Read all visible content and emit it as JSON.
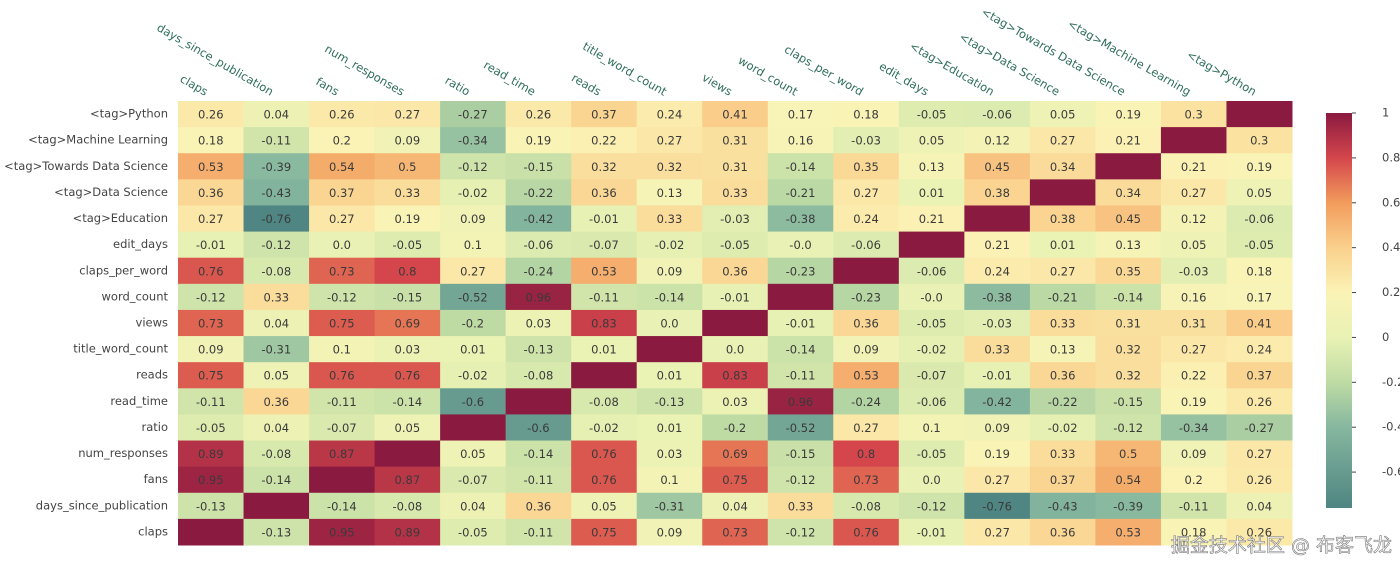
{
  "chart_data": {
    "type": "heatmap",
    "x": [
      "claps",
      "days_since_publication",
      "fans",
      "num_responses",
      "ratio",
      "read_time",
      "reads",
      "title_word_count",
      "views",
      "word_count",
      "claps_per_word",
      "edit_days",
      "<tag>Education",
      "<tag>Data Science",
      "<tag>Towards Data Science",
      "<tag>Machine Learning",
      "<tag>Python"
    ],
    "y": [
      "<tag>Python",
      "<tag>Machine Learning",
      "<tag>Towards Data Science",
      "<tag>Data Science",
      "<tag>Education",
      "edit_days",
      "claps_per_word",
      "word_count",
      "views",
      "title_word_count",
      "reads",
      "read_time",
      "ratio",
      "num_responses",
      "fans",
      "days_since_publication",
      "claps"
    ],
    "z": [
      [
        0.26,
        0.04,
        0.26,
        0.27,
        -0.27,
        0.26,
        0.37,
        0.24,
        0.41,
        0.17,
        0.18,
        -0.05,
        -0.06,
        0.05,
        0.19,
        0.3,
        1
      ],
      [
        0.18,
        -0.11,
        0.2,
        0.09,
        -0.34,
        0.19,
        0.22,
        0.27,
        0.31,
        0.16,
        -0.03,
        0.05,
        0.12,
        0.27,
        0.21,
        1,
        0.3
      ],
      [
        0.53,
        -0.39,
        0.54,
        0.5,
        -0.12,
        -0.15,
        0.32,
        0.32,
        0.31,
        -0.14,
        0.35,
        0.13,
        0.45,
        0.34,
        1,
        0.21,
        0.19
      ],
      [
        0.36,
        -0.43,
        0.37,
        0.33,
        -0.02,
        -0.22,
        0.36,
        0.13,
        0.33,
        -0.21,
        0.27,
        0.01,
        0.38,
        1,
        0.34,
        0.27,
        0.05
      ],
      [
        0.27,
        -0.76,
        0.27,
        0.19,
        0.09,
        -0.42,
        -0.01,
        0.33,
        -0.03,
        -0.38,
        0.24,
        0.21,
        1,
        0.38,
        0.45,
        0.12,
        -0.06
      ],
      [
        -0.01,
        -0.12,
        0,
        -0.05,
        0.1,
        -0.06,
        -0.07,
        -0.02,
        -0.05,
        0,
        -0.06,
        1,
        0.21,
        0.01,
        0.13,
        0.05,
        -0.05
      ],
      [
        0.76,
        -0.08,
        0.73,
        0.8,
        0.27,
        -0.24,
        0.53,
        0.09,
        0.36,
        -0.23,
        1,
        -0.06,
        0.24,
        0.27,
        0.35,
        -0.03,
        0.18
      ],
      [
        -0.12,
        0.33,
        -0.12,
        -0.15,
        -0.52,
        0.96,
        -0.11,
        -0.14,
        -0.01,
        1,
        -0.23,
        0,
        -0.38,
        -0.21,
        -0.14,
        0.16,
        0.17
      ],
      [
        0.73,
        0.04,
        0.75,
        0.69,
        -0.2,
        0.03,
        0.83,
        0,
        1,
        -0.01,
        0.36,
        -0.05,
        -0.03,
        0.33,
        0.31,
        0.31,
        0.41
      ],
      [
        0.09,
        -0.31,
        0.1,
        0.03,
        0.01,
        -0.13,
        0.01,
        1,
        0,
        -0.14,
        0.09,
        -0.02,
        0.33,
        0.13,
        0.32,
        0.27,
        0.24
      ],
      [
        0.75,
        0.05,
        0.76,
        0.76,
        -0.02,
        -0.08,
        1,
        0.01,
        0.83,
        -0.11,
        0.53,
        -0.07,
        -0.01,
        0.36,
        0.32,
        0.22,
        0.37
      ],
      [
        -0.11,
        0.36,
        -0.11,
        -0.14,
        -0.6,
        1,
        -0.08,
        -0.13,
        0.03,
        0.96,
        -0.24,
        -0.06,
        -0.42,
        -0.22,
        -0.15,
        0.19,
        0.26
      ],
      [
        -0.05,
        0.04,
        -0.07,
        0.05,
        1,
        -0.6,
        -0.02,
        0.01,
        -0.2,
        -0.52,
        0.27,
        0.1,
        0.09,
        -0.02,
        -0.12,
        -0.34,
        -0.27
      ],
      [
        0.89,
        -0.08,
        0.87,
        1,
        0.05,
        -0.14,
        0.76,
        0.03,
        0.69,
        -0.15,
        0.8,
        -0.05,
        0.19,
        0.33,
        0.5,
        0.09,
        0.27
      ],
      [
        0.95,
        -0.14,
        1,
        0.87,
        -0.07,
        -0.11,
        0.76,
        0.1,
        0.75,
        -0.12,
        0.73,
        0,
        0.27,
        0.37,
        0.54,
        0.2,
        0.26
      ],
      [
        -0.13,
        1,
        -0.14,
        -0.08,
        0.04,
        0.36,
        0.05,
        -0.31,
        0.04,
        0.33,
        -0.08,
        -0.12,
        -0.76,
        -0.43,
        -0.39,
        -0.11,
        0.04
      ],
      [
        1,
        -0.13,
        0.95,
        0.89,
        -0.05,
        -0.11,
        0.75,
        0.09,
        0.73,
        -0.12,
        0.76,
        -0.01,
        0.27,
        0.36,
        0.53,
        0.18,
        0.26
      ]
    ],
    "value_labels": [
      [
        "0.26",
        "0.04",
        "0.26",
        "0.27",
        "-0.27",
        "0.26",
        "0.37",
        "0.24",
        "0.41",
        "0.17",
        "0.18",
        "-0.05",
        "-0.06",
        "0.05",
        "0.19",
        "0.3",
        null
      ],
      [
        "0.18",
        "-0.11",
        "0.2",
        "0.09",
        "-0.34",
        "0.19",
        "0.22",
        "0.27",
        "0.31",
        "0.16",
        "-0.03",
        "0.05",
        "0.12",
        "0.27",
        "0.21",
        null,
        "0.3"
      ],
      [
        "0.53",
        "-0.39",
        "0.54",
        "0.5",
        "-0.12",
        "-0.15",
        "0.32",
        "0.32",
        "0.31",
        "-0.14",
        "0.35",
        "0.13",
        "0.45",
        "0.34",
        null,
        "0.21",
        "0.19"
      ],
      [
        "0.36",
        "-0.43",
        "0.37",
        "0.33",
        "-0.02",
        "-0.22",
        "0.36",
        "0.13",
        "0.33",
        "-0.21",
        "0.27",
        "0.01",
        "0.38",
        null,
        "0.34",
        "0.27",
        "0.05"
      ],
      [
        "0.27",
        "-0.76",
        "0.27",
        "0.19",
        "0.09",
        "-0.42",
        "-0.01",
        "0.33",
        "-0.03",
        "-0.38",
        "0.24",
        "0.21",
        null,
        "0.38",
        "0.45",
        "0.12",
        "-0.06"
      ],
      [
        "-0.01",
        "-0.12",
        "0.0",
        "-0.05",
        "0.1",
        "-0.06",
        "-0.07",
        "-0.02",
        "-0.05",
        "-0.0",
        "-0.06",
        null,
        "0.21",
        "0.01",
        "0.13",
        "0.05",
        "-0.05"
      ],
      [
        "0.76",
        "-0.08",
        "0.73",
        "0.8",
        "0.27",
        "-0.24",
        "0.53",
        "0.09",
        "0.36",
        "-0.23",
        null,
        "-0.06",
        "0.24",
        "0.27",
        "0.35",
        "-0.03",
        "0.18"
      ],
      [
        "-0.12",
        "0.33",
        "-0.12",
        "-0.15",
        "-0.52",
        "0.96",
        "-0.11",
        "-0.14",
        "-0.01",
        null,
        "-0.23",
        "-0.0",
        "-0.38",
        "-0.21",
        "-0.14",
        "0.16",
        "0.17"
      ],
      [
        "0.73",
        "0.04",
        "0.75",
        "0.69",
        "-0.2",
        "0.03",
        "0.83",
        "0.0",
        null,
        "-0.01",
        "0.36",
        "-0.05",
        "-0.03",
        "0.33",
        "0.31",
        "0.31",
        "0.41"
      ],
      [
        "0.09",
        "-0.31",
        "0.1",
        "0.03",
        "0.01",
        "-0.13",
        "0.01",
        null,
        "0.0",
        "-0.14",
        "0.09",
        "-0.02",
        "0.33",
        "0.13",
        "0.32",
        "0.27",
        "0.24"
      ],
      [
        "0.75",
        "0.05",
        "0.76",
        "0.76",
        "-0.02",
        "-0.08",
        null,
        "0.01",
        "0.83",
        "-0.11",
        "0.53",
        "-0.07",
        "-0.01",
        "0.36",
        "0.32",
        "0.22",
        "0.37"
      ],
      [
        "-0.11",
        "0.36",
        "-0.11",
        "-0.14",
        "-0.6",
        null,
        "-0.08",
        "-0.13",
        "0.03",
        "0.96",
        "-0.24",
        "-0.06",
        "-0.42",
        "-0.22",
        "-0.15",
        "0.19",
        "0.26"
      ],
      [
        "-0.05",
        "0.04",
        "-0.07",
        "0.05",
        null,
        "-0.6",
        "-0.02",
        "0.01",
        "-0.2",
        "-0.52",
        "0.27",
        "0.1",
        "0.09",
        "-0.02",
        "-0.12",
        "-0.34",
        "-0.27"
      ],
      [
        "0.89",
        "-0.08",
        "0.87",
        null,
        "0.05",
        "-0.14",
        "0.76",
        "0.03",
        "0.69",
        "-0.15",
        "0.8",
        "-0.05",
        "0.19",
        "0.33",
        "0.5",
        "0.09",
        "0.27"
      ],
      [
        "0.95",
        "-0.14",
        null,
        "0.87",
        "-0.07",
        "-0.11",
        "0.76",
        "0.1",
        "0.75",
        "-0.12",
        "0.73",
        "0.0",
        "0.27",
        "0.37",
        "0.54",
        "0.2",
        "0.26"
      ],
      [
        "-0.13",
        null,
        "-0.14",
        "-0.08",
        "0.04",
        "0.36",
        "0.05",
        "-0.31",
        "0.04",
        "0.33",
        "-0.08",
        "-0.12",
        "-0.76",
        "-0.43",
        "-0.39",
        "-0.11",
        "0.04"
      ],
      [
        null,
        "-0.13",
        "0.95",
        "0.89",
        "-0.05",
        "-0.11",
        "0.75",
        "0.09",
        "0.73",
        "-0.12",
        "0.76",
        "-0.01",
        "0.27",
        "0.36",
        "0.53",
        "0.18",
        "0.26"
      ]
    ],
    "zlim": [
      -0.76,
      1
    ],
    "colorbar_ticks": [
      1,
      0.8,
      0.6,
      0.4,
      0.2,
      0,
      -0.2,
      -0.4,
      -0.6
    ],
    "colorscale": [
      [
        -0.76,
        "#4f8582"
      ],
      [
        -0.4,
        "#86b79f"
      ],
      [
        -0.2,
        "#bedba4"
      ],
      [
        0,
        "#e9f2b4"
      ],
      [
        0.2,
        "#fbf3b6"
      ],
      [
        0.4,
        "#fad08c"
      ],
      [
        0.6,
        "#f29c5c"
      ],
      [
        0.8,
        "#d4464c"
      ],
      [
        1,
        "#8a1a40"
      ]
    ],
    "watermark": "掘金技术社区 @ 布客飞龙"
  }
}
